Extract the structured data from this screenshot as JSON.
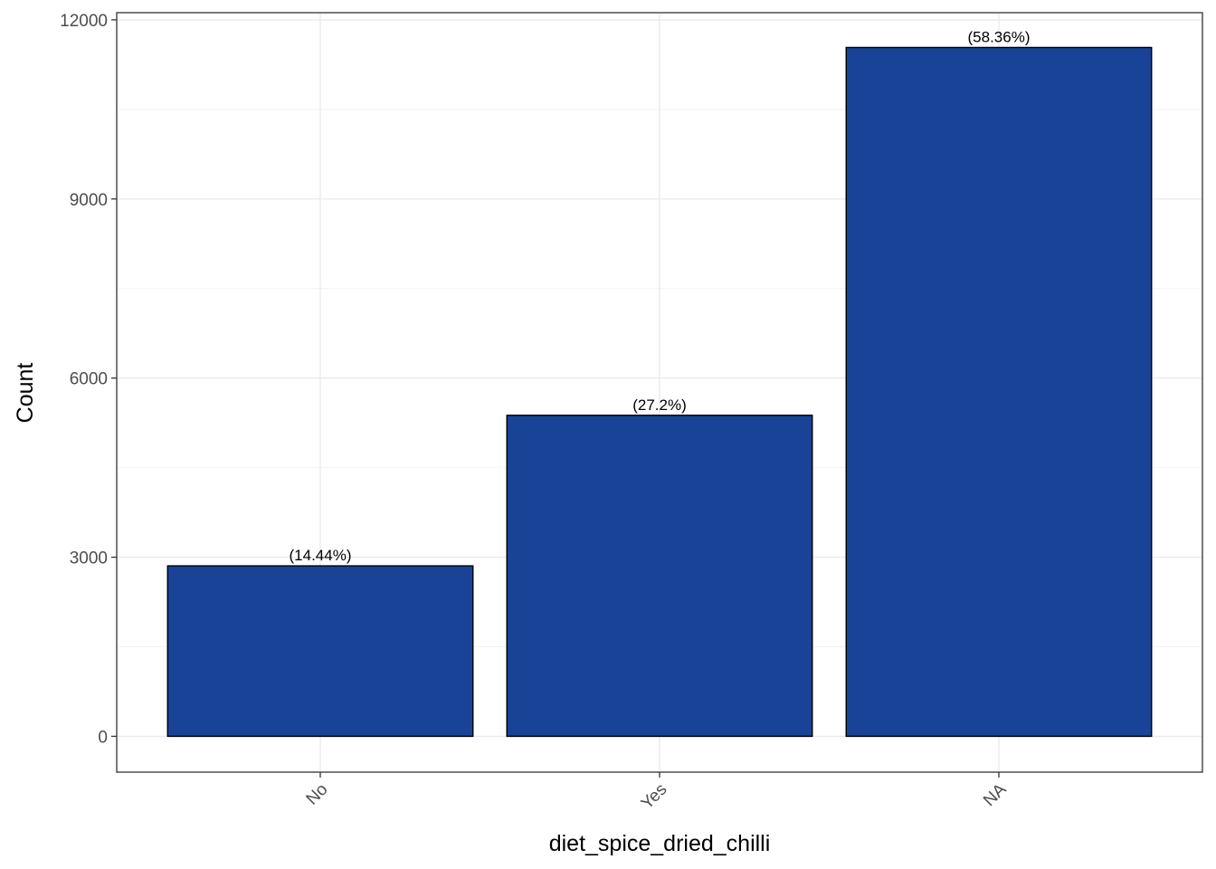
{
  "chart_data": {
    "type": "bar",
    "title": "",
    "xlabel": "diet_spice_dried_chilli",
    "ylabel": "Count",
    "categories": [
      "No",
      "Yes",
      "NA"
    ],
    "values": [
      2855,
      5377,
      11537
    ],
    "bar_labels": [
      "(14.44%)",
      "(27.2%)",
      "(58.36%)"
    ],
    "ylim": [
      -600,
      12120
    ],
    "yticks": [
      0,
      3000,
      6000,
      9000,
      12000
    ],
    "ytick_labels": [
      "0",
      "3000",
      "6000",
      "9000",
      "12000"
    ],
    "grid": true,
    "legend": "none",
    "colors": {
      "bar_fill": "#184397",
      "bar_stroke": "#000000",
      "grid_major": "#ebebeb",
      "grid_minor": "#f2f2f2",
      "panel_border": "#333333"
    }
  }
}
